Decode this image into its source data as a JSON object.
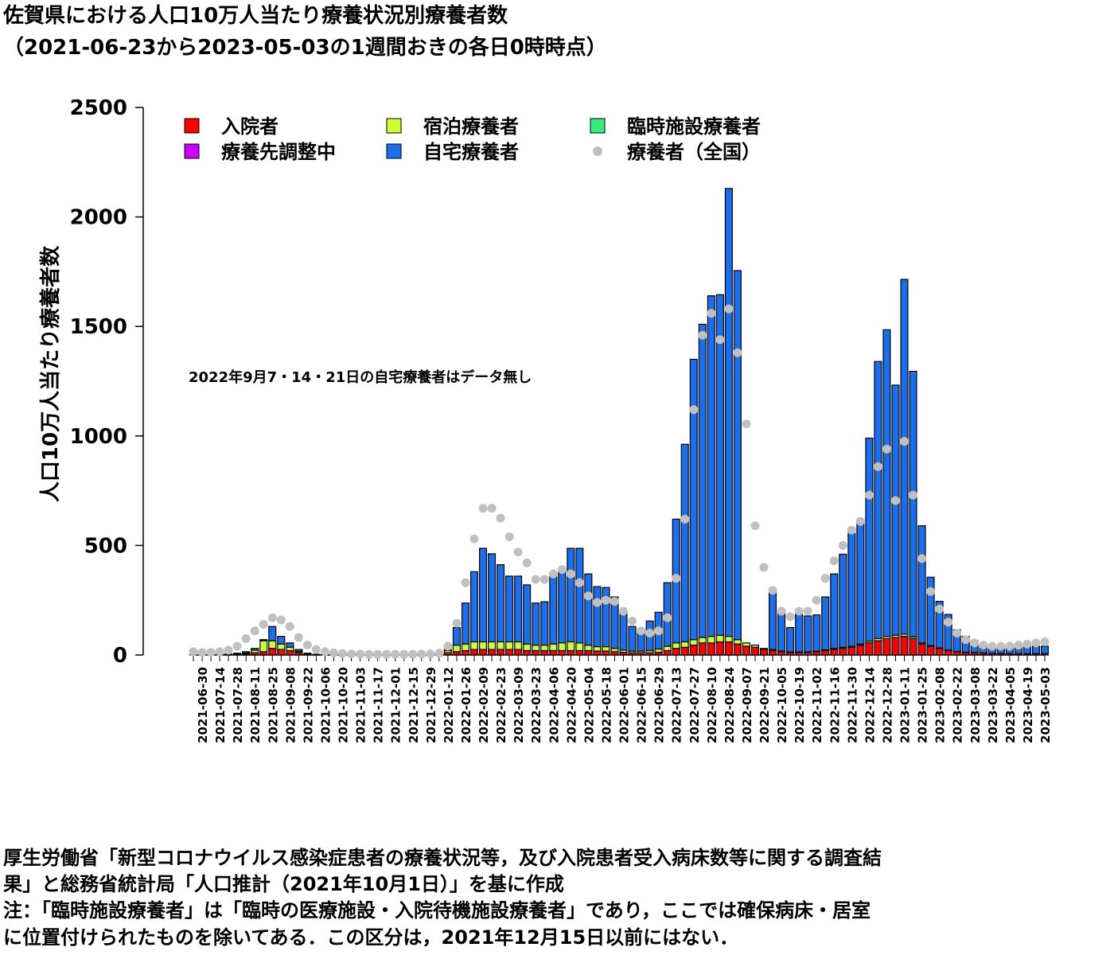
{
  "chart_data": {
    "type": "bar",
    "stacked": true,
    "title": [
      "佐賀県における人口10万人当たり療養状況別療養者数",
      "（2021-06-23から2023-05-03の1週間おきの各日0時時点）"
    ],
    "ylabel": "人口10万人当たり療養者数",
    "annotation": "2022年9月7・14・21日の自宅療養者はデータ無し",
    "source": [
      "厚生労働省「新型コロナウイルス感染症患者の療養状況等，及び入院患者受入病床数等に関する調査結",
      "果」と総務省統計局「人口推計（2021年10月1日）」を基に作成"
    ],
    "note": [
      "注：「臨時施設療養者」は「臨時の医療施設・入院待機施設療養者」であり，ここでは確保病床・居室",
      "に位置付けられたものを除いてある．この区分は，2021年12月15日以前にはない．"
    ],
    "ylim": [
      0,
      2500
    ],
    "yticks": [
      0,
      500,
      1000,
      1500,
      2000,
      2500
    ],
    "legend": "top-left",
    "categories": [
      null,
      "2021-06-30",
      null,
      "2021-07-14",
      null,
      "2021-07-28",
      null,
      "2021-08-11",
      null,
      "2021-08-25",
      null,
      "2021-09-08",
      null,
      "2021-09-22",
      null,
      "2021-10-06",
      null,
      "2021-10-20",
      null,
      "2021-11-03",
      null,
      "2021-11-17",
      null,
      "2021-12-01",
      null,
      "2021-12-15",
      null,
      "2021-12-29",
      null,
      "2022-01-12",
      null,
      "2022-01-26",
      null,
      "2022-02-09",
      null,
      "2022-02-23",
      null,
      "2022-03-09",
      null,
      "2022-03-23",
      null,
      "2022-04-06",
      null,
      "2022-04-20",
      null,
      "2022-05-04",
      null,
      "2022-05-18",
      null,
      "2022-06-01",
      null,
      "2022-06-15",
      null,
      "2022-06-29",
      null,
      "2022-07-13",
      null,
      "2022-07-27",
      null,
      "2022-08-10",
      null,
      "2022-08-24",
      null,
      "2022-09-07",
      null,
      "2022-09-21",
      null,
      "2022-10-05",
      null,
      "2022-10-19",
      null,
      "2022-11-02",
      null,
      "2022-11-16",
      null,
      "2022-11-30",
      null,
      "2022-12-14",
      null,
      "2022-12-28",
      null,
      "2023-01-11",
      null,
      "2023-01-25",
      null,
      "2023-02-08",
      null,
      "2023-02-22",
      null,
      "2023-03-08",
      null,
      "2023-03-22",
      null,
      "2023-04-05",
      null,
      "2023-04-19",
      null,
      "2023-05-03"
    ],
    "series": [
      {
        "name": "入院者",
        "color": "#ff0000",
        "values": [
          1,
          1,
          1,
          1,
          2,
          3,
          5,
          10,
          15,
          30,
          25,
          20,
          12,
          5,
          2,
          1,
          1,
          1,
          1,
          1,
          1,
          1,
          1,
          1,
          1,
          1,
          1,
          2,
          5,
          10,
          15,
          20,
          25,
          25,
          25,
          25,
          25,
          25,
          20,
          20,
          20,
          20,
          20,
          20,
          20,
          20,
          18,
          18,
          15,
          12,
          10,
          10,
          10,
          12,
          20,
          30,
          35,
          45,
          55,
          55,
          60,
          60,
          50,
          40,
          35,
          25,
          20,
          15,
          12,
          12,
          12,
          15,
          20,
          25,
          30,
          35,
          45,
          55,
          65,
          75,
          80,
          85,
          75,
          50,
          40,
          30,
          20,
          15,
          12,
          10,
          8,
          7,
          7,
          6,
          6,
          6,
          6,
          6
        ]
      },
      {
        "name": "宿泊療養者",
        "color": "#ccff33",
        "values": [
          0,
          0,
          0,
          1,
          1,
          2,
          4,
          12,
          50,
          35,
          25,
          15,
          5,
          1,
          0,
          0,
          0,
          0,
          0,
          0,
          0,
          0,
          0,
          0,
          0,
          0,
          0,
          1,
          2,
          10,
          30,
          30,
          35,
          35,
          35,
          35,
          35,
          35,
          30,
          25,
          25,
          30,
          35,
          40,
          35,
          25,
          20,
          20,
          15,
          10,
          8,
          8,
          10,
          15,
          20,
          25,
          25,
          25,
          25,
          30,
          30,
          25,
          20,
          15,
          10,
          5,
          5,
          3,
          2,
          2,
          2,
          2,
          3,
          5,
          5,
          5,
          5,
          8,
          10,
          10,
          10,
          10,
          8,
          5,
          3,
          2,
          2,
          1,
          1,
          1,
          1,
          0,
          0,
          0,
          0,
          0,
          0,
          0
        ]
      },
      {
        "name": "臨時施設療養者",
        "color": "#33ee77",
        "values": [
          0,
          0,
          0,
          0,
          0,
          0,
          0,
          0,
          0,
          0,
          0,
          0,
          0,
          0,
          0,
          0,
          0,
          0,
          0,
          0,
          0,
          0,
          0,
          0,
          0,
          0,
          0,
          0,
          0,
          0,
          0,
          0,
          0,
          0,
          0,
          0,
          0,
          0,
          0,
          0,
          0,
          0,
          0,
          0,
          0,
          0,
          0,
          0,
          0,
          0,
          0,
          0,
          0,
          0,
          0,
          0,
          0,
          0,
          0,
          0,
          0,
          0,
          0,
          0,
          0,
          0,
          0,
          0,
          0,
          0,
          0,
          0,
          0,
          0,
          0,
          0,
          0,
          0,
          0,
          0,
          0,
          0,
          0,
          0,
          0,
          0,
          0,
          0,
          0,
          0,
          0,
          0,
          0,
          0,
          0,
          0,
          0,
          0
        ]
      },
      {
        "name": "療養先調整中",
        "color": "#cc00ff",
        "values": [
          0,
          0,
          0,
          0,
          0,
          0,
          0,
          0,
          0,
          0,
          0,
          0,
          0,
          0,
          0,
          0,
          0,
          0,
          0,
          0,
          0,
          0,
          0,
          0,
          0,
          0,
          0,
          0,
          0,
          0,
          0,
          0,
          0,
          0,
          0,
          0,
          0,
          0,
          0,
          0,
          0,
          0,
          0,
          0,
          0,
          0,
          0,
          0,
          0,
          0,
          0,
          0,
          0,
          0,
          0,
          0,
          0,
          0,
          0,
          0,
          0,
          0,
          0,
          0,
          0,
          0,
          0,
          0,
          0,
          0,
          0,
          0,
          0,
          0,
          0,
          0,
          0,
          0,
          0,
          0,
          0,
          0,
          0,
          0,
          0,
          0,
          0,
          0,
          0,
          0,
          0,
          0,
          0,
          0,
          0,
          0,
          0,
          0
        ]
      },
      {
        "name": "自宅療養者",
        "color": "#1a6fef",
        "values": [
          1,
          2,
          2,
          2,
          2,
          3,
          6,
          8,
          5,
          65,
          35,
          20,
          8,
          2,
          1,
          1,
          0,
          0,
          0,
          0,
          0,
          0,
          0,
          0,
          0,
          0,
          1,
          0,
          3,
          5,
          80,
          187,
          320,
          427,
          402,
          352,
          300,
          300,
          270,
          192,
          198,
          310,
          325,
          427,
          432,
          325,
          274,
          270,
          235,
          181,
          112,
          92,
          135,
          168,
          290,
          565,
          902,
          1280,
          1430,
          1555,
          1555,
          2045,
          1685,
          null,
          null,
          null,
          265,
          187,
          111,
          171,
          164,
          166,
          242,
          340,
          425,
          515,
          565,
          927,
          1265,
          1400,
          1142,
          1620,
          1212,
          535,
          312,
          213,
          163,
          99,
          72,
          54,
          36,
          31,
          31,
          32,
          32,
          32,
          34,
          34
        ]
      },
      {
        "name": "療養者（全国）",
        "type": "scatter",
        "color": "#c0c0c0",
        "values": [
          15,
          12,
          12,
          15,
          22,
          40,
          75,
          110,
          140,
          170,
          160,
          130,
          80,
          45,
          25,
          15,
          10,
          7,
          5,
          4,
          3,
          3,
          3,
          3,
          3,
          3,
          4,
          5,
          8,
          40,
          145,
          330,
          530,
          670,
          670,
          625,
          540,
          470,
          420,
          345,
          345,
          370,
          390,
          370,
          330,
          270,
          240,
          250,
          245,
          200,
          155,
          110,
          100,
          110,
          170,
          350,
          620,
          1120,
          1460,
          1560,
          1440,
          1580,
          1380,
          1055,
          590,
          400,
          295,
          200,
          175,
          200,
          200,
          250,
          350,
          430,
          500,
          570,
          610,
          730,
          860,
          940,
          705,
          975,
          730,
          440,
          290,
          210,
          150,
          100,
          70,
          55,
          45,
          40,
          40,
          40,
          45,
          50,
          55,
          60
        ]
      }
    ]
  }
}
